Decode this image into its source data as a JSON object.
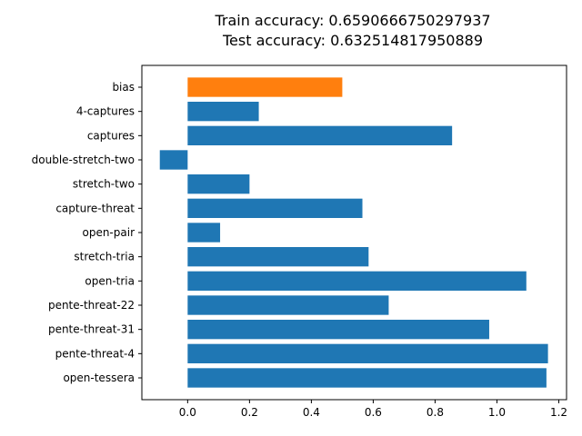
{
  "chart_data": {
    "type": "bar",
    "orientation": "horizontal",
    "title_lines": [
      "Train accuracy: 0.6590666750297937",
      "Test accuracy: 0.632514817950889"
    ],
    "categories": [
      "bias",
      "4-captures",
      "captures",
      "double-stretch-two",
      "stretch-two",
      "capture-threat",
      "open-pair",
      "stretch-tria",
      "open-tria",
      "pente-threat-22",
      "pente-threat-31",
      "pente-threat-4",
      "open-tessera"
    ],
    "values": [
      0.5,
      0.23,
      0.855,
      -0.09,
      0.2,
      0.565,
      0.105,
      0.585,
      1.095,
      0.65,
      0.975,
      1.165,
      1.16
    ],
    "bar_colors": [
      "#ff7f0e",
      "#1f77b4",
      "#1f77b4",
      "#1f77b4",
      "#1f77b4",
      "#1f77b4",
      "#1f77b4",
      "#1f77b4",
      "#1f77b4",
      "#1f77b4",
      "#1f77b4",
      "#1f77b4",
      "#1f77b4"
    ],
    "xlim": [
      -0.148,
      1.225
    ],
    "xticks": [
      0.0,
      0.2,
      0.4,
      0.6,
      0.8,
      1.0,
      1.2
    ],
    "xtick_labels": [
      "0.0",
      "0.2",
      "0.4",
      "0.6",
      "0.8",
      "1.0",
      "1.2"
    ],
    "grid": false,
    "legend": "none"
  }
}
